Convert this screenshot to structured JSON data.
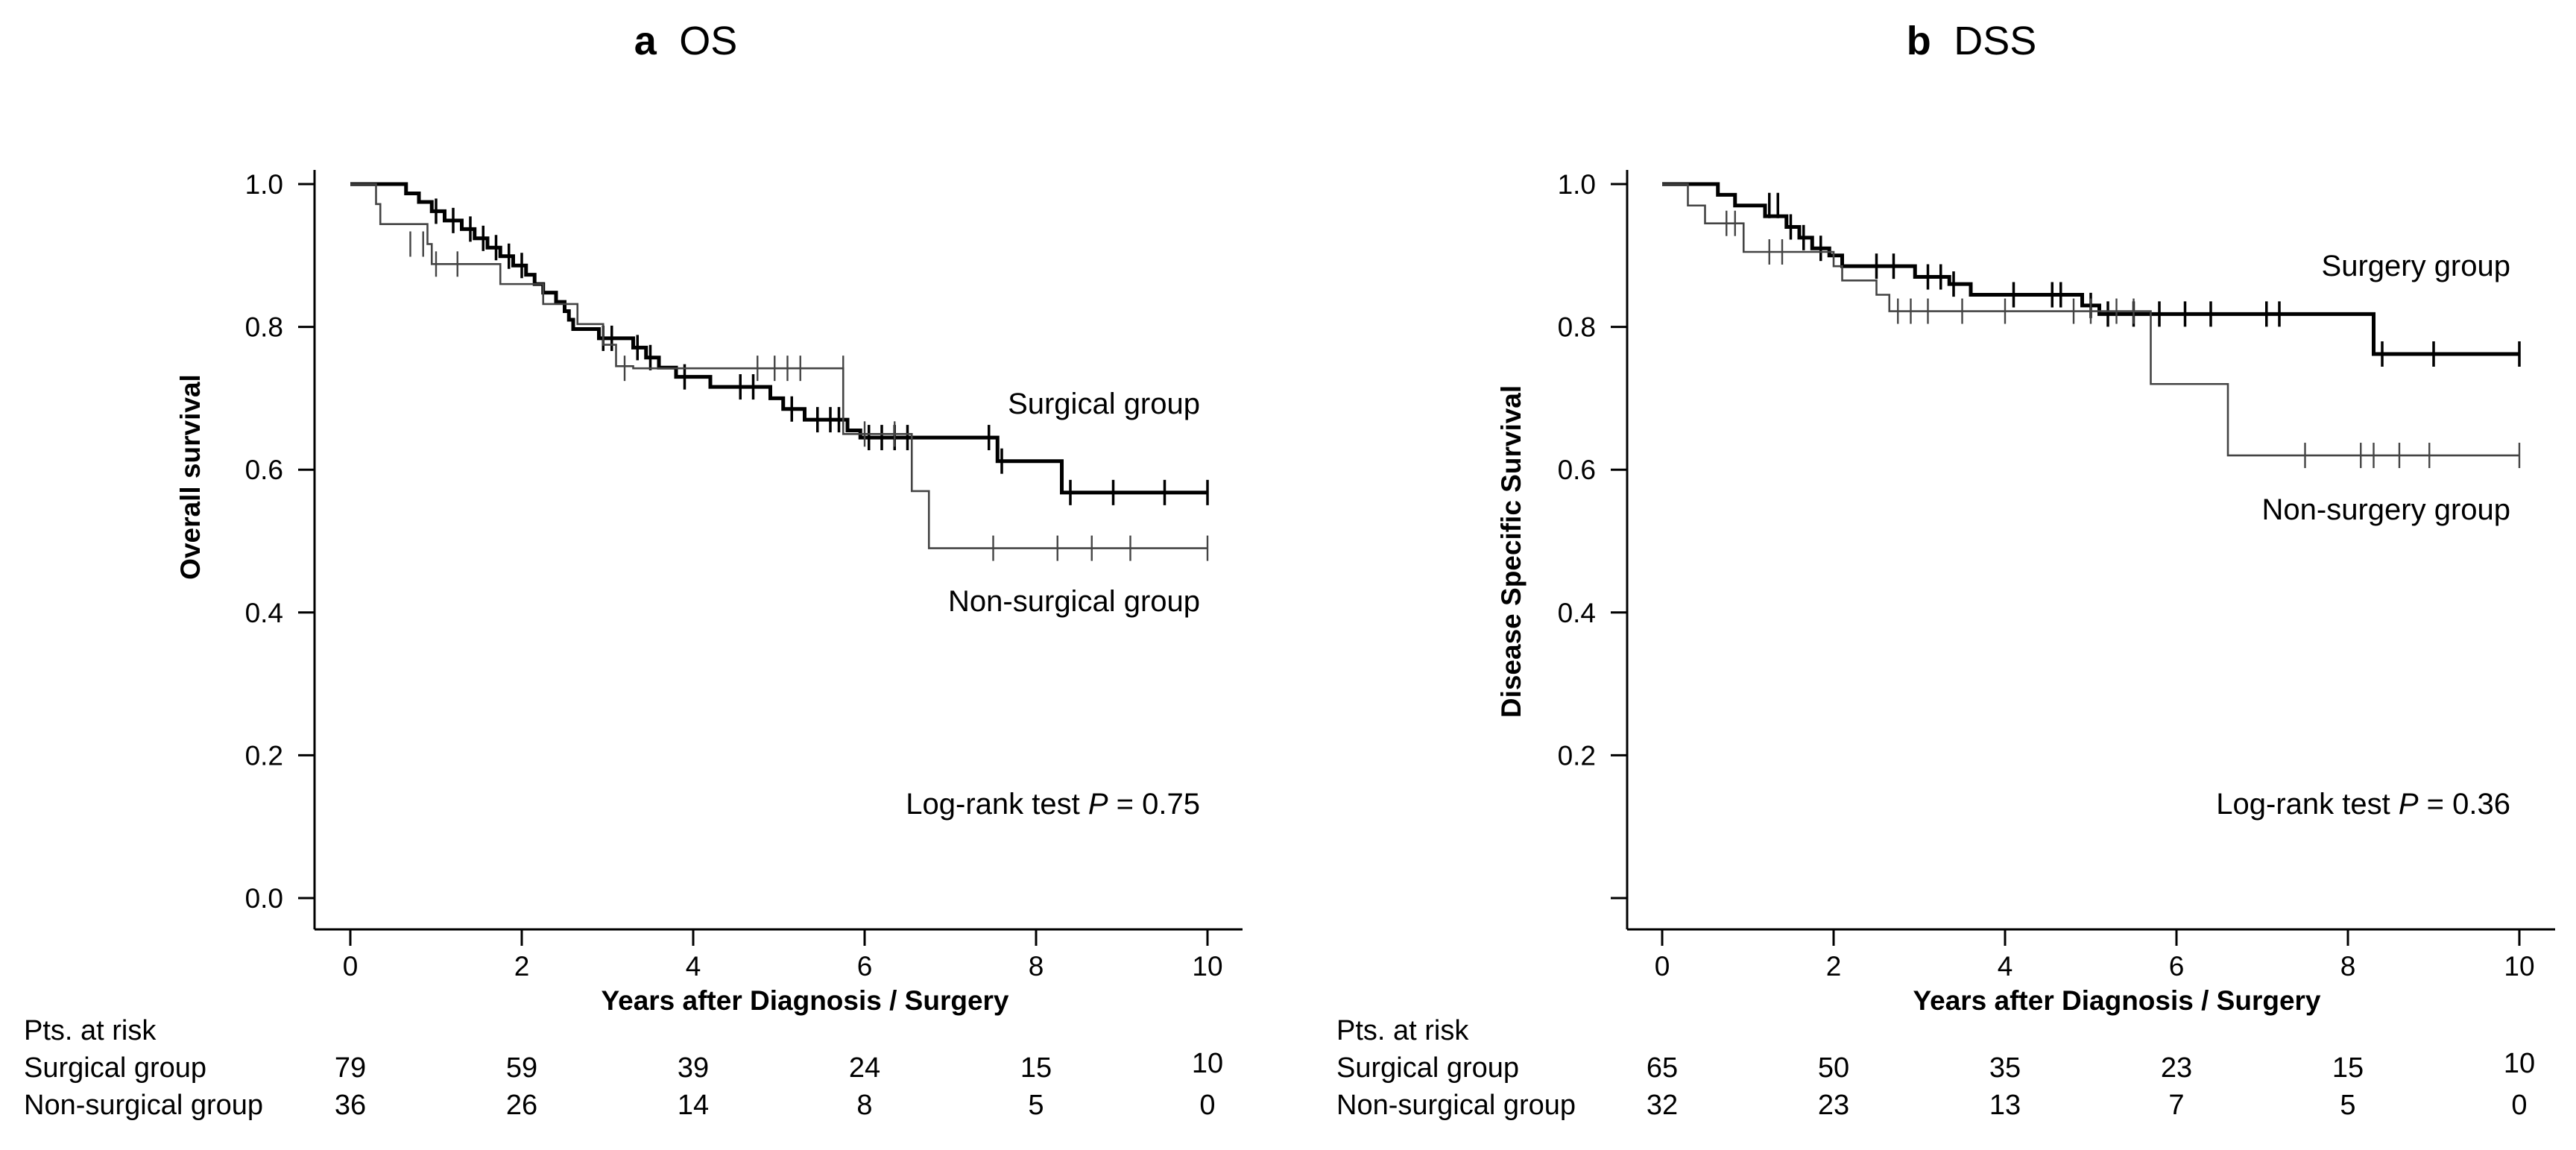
{
  "chart_data": [
    {
      "type": "line",
      "panel_letter": "a",
      "title": "OS",
      "xlabel": "Years after Diagnosis / Surgery",
      "ylabel": "Overall survival",
      "xlim": [
        0,
        10
      ],
      "ylim": [
        0,
        1
      ],
      "x_ticks": [
        0,
        2,
        4,
        6,
        8,
        10
      ],
      "y_ticks": [
        "0.0",
        "0.2",
        "0.4",
        "0.6",
        "0.8",
        "1.0"
      ],
      "grid": false,
      "annotation": {
        "prefix": "Log-rank test ",
        "p_symbol": "P",
        "value": " = 0.75"
      },
      "series": [
        {
          "name": "Surgical group",
          "emphasis": "bold",
          "steps": [
            [
              0,
              1.0
            ],
            [
              0.65,
              0.987
            ],
            [
              0.8,
              0.975
            ],
            [
              0.95,
              0.962
            ],
            [
              1.1,
              0.949
            ],
            [
              1.3,
              0.937
            ],
            [
              1.45,
              0.924
            ],
            [
              1.6,
              0.911
            ],
            [
              1.75,
              0.899
            ],
            [
              1.9,
              0.886
            ],
            [
              2.05,
              0.873
            ],
            [
              2.15,
              0.86
            ],
            [
              2.25,
              0.848
            ],
            [
              2.4,
              0.835
            ],
            [
              2.5,
              0.822
            ],
            [
              2.55,
              0.81
            ],
            [
              2.6,
              0.797
            ],
            [
              2.9,
              0.784
            ],
            [
              3.3,
              0.771
            ],
            [
              3.45,
              0.757
            ],
            [
              3.6,
              0.743
            ],
            [
              3.8,
              0.73
            ],
            [
              4.2,
              0.716
            ],
            [
              4.9,
              0.7
            ],
            [
              5.05,
              0.685
            ],
            [
              5.3,
              0.67
            ],
            [
              5.8,
              0.655
            ],
            [
              5.95,
              0.645
            ],
            [
              7.55,
              0.612
            ],
            [
              8.3,
              0.568
            ],
            [
              10.0,
              0.568
            ]
          ],
          "censors": [
            [
              1.0,
              0.962
            ],
            [
              1.2,
              0.949
            ],
            [
              1.4,
              0.937
            ],
            [
              1.55,
              0.924
            ],
            [
              1.7,
              0.911
            ],
            [
              1.85,
              0.899
            ],
            [
              2.0,
              0.886
            ],
            [
              2.95,
              0.784
            ],
            [
              3.05,
              0.784
            ],
            [
              3.35,
              0.771
            ],
            [
              3.5,
              0.757
            ],
            [
              3.9,
              0.73
            ],
            [
              4.55,
              0.716
            ],
            [
              4.7,
              0.716
            ],
            [
              5.15,
              0.685
            ],
            [
              5.45,
              0.67
            ],
            [
              5.6,
              0.67
            ],
            [
              5.7,
              0.67
            ],
            [
              6.05,
              0.645
            ],
            [
              6.2,
              0.645
            ],
            [
              6.35,
              0.645
            ],
            [
              6.5,
              0.645
            ],
            [
              7.45,
              0.645
            ],
            [
              7.6,
              0.612
            ],
            [
              8.4,
              0.568
            ],
            [
              8.9,
              0.568
            ],
            [
              9.5,
              0.568
            ],
            [
              10.0,
              0.568
            ]
          ]
        },
        {
          "name": "Non-surgical group",
          "emphasis": "thin",
          "steps": [
            [
              0,
              1.0
            ],
            [
              0.3,
              0.972
            ],
            [
              0.35,
              0.944
            ],
            [
              0.9,
              0.916
            ],
            [
              0.95,
              0.888
            ],
            [
              1.75,
              0.86
            ],
            [
              2.25,
              0.832
            ],
            [
              2.65,
              0.804
            ],
            [
              2.95,
              0.775
            ],
            [
              3.1,
              0.745
            ],
            [
              3.3,
              0.742
            ],
            [
              5.75,
              0.65
            ],
            [
              6.55,
              0.57
            ],
            [
              6.75,
              0.49
            ],
            [
              10.0,
              0.49
            ]
          ],
          "censors": [
            [
              0.7,
              0.916
            ],
            [
              0.85,
              0.916
            ],
            [
              1.0,
              0.888
            ],
            [
              1.25,
              0.888
            ],
            [
              3.2,
              0.742
            ],
            [
              4.75,
              0.742
            ],
            [
              4.95,
              0.742
            ],
            [
              5.1,
              0.742
            ],
            [
              5.25,
              0.742
            ],
            [
              5.75,
              0.742
            ],
            [
              6.0,
              0.65
            ],
            [
              6.35,
              0.65
            ],
            [
              7.5,
              0.49
            ],
            [
              8.25,
              0.49
            ],
            [
              8.65,
              0.49
            ],
            [
              9.1,
              0.49
            ],
            [
              10.0,
              0.49
            ]
          ]
        }
      ],
      "labels": {
        "upper": "Surgical group",
        "lower": "Non-surgical group"
      },
      "risk_table": {
        "header": "Pts. at risk",
        "rows": [
          {
            "label": "Surgical group",
            "values": [
              "79",
              "59",
              "39",
              "24",
              "15",
              "10"
            ]
          },
          {
            "label": "Non-surgical group",
            "values": [
              "36",
              "26",
              "14",
              "8",
              "5",
              "0"
            ]
          }
        ]
      }
    },
    {
      "type": "line",
      "panel_letter": "b",
      "title": "DSS",
      "xlabel": "Years after Diagnosis / Surgery",
      "ylabel": "Disease Specific Survival",
      "xlim": [
        0,
        10
      ],
      "ylim": [
        0,
        1
      ],
      "x_ticks": [
        0,
        2,
        4,
        6,
        8,
        10
      ],
      "y_ticks": [
        "",
        "0.2",
        "0.4",
        "0.6",
        "0.8",
        "1.0"
      ],
      "grid": false,
      "annotation": {
        "prefix": "Log-rank test ",
        "p_symbol": "P",
        "value": " = 0.36"
      },
      "series": [
        {
          "name": "Surgery group",
          "emphasis": "bold",
          "steps": [
            [
              0,
              1.0
            ],
            [
              0.65,
              0.985
            ],
            [
              0.85,
              0.97
            ],
            [
              1.2,
              0.955
            ],
            [
              1.45,
              0.94
            ],
            [
              1.6,
              0.925
            ],
            [
              1.75,
              0.91
            ],
            [
              1.95,
              0.9
            ],
            [
              2.1,
              0.885
            ],
            [
              2.95,
              0.87
            ],
            [
              3.35,
              0.86
            ],
            [
              3.6,
              0.845
            ],
            [
              4.9,
              0.83
            ],
            [
              5.1,
              0.818
            ],
            [
              8.3,
              0.762
            ],
            [
              10.0,
              0.762
            ]
          ],
          "censors": [
            [
              1.25,
              0.97
            ],
            [
              1.35,
              0.97
            ],
            [
              1.5,
              0.94
            ],
            [
              1.65,
              0.925
            ],
            [
              1.85,
              0.91
            ],
            [
              2.5,
              0.885
            ],
            [
              2.7,
              0.885
            ],
            [
              3.1,
              0.87
            ],
            [
              3.25,
              0.87
            ],
            [
              3.4,
              0.86
            ],
            [
              4.1,
              0.845
            ],
            [
              4.55,
              0.845
            ],
            [
              4.65,
              0.845
            ],
            [
              5.0,
              0.83
            ],
            [
              5.2,
              0.818
            ],
            [
              5.5,
              0.818
            ],
            [
              5.8,
              0.818
            ],
            [
              6.1,
              0.818
            ],
            [
              6.4,
              0.818
            ],
            [
              7.05,
              0.818
            ],
            [
              7.2,
              0.818
            ],
            [
              8.4,
              0.762
            ],
            [
              9.0,
              0.762
            ],
            [
              10.0,
              0.762
            ]
          ]
        },
        {
          "name": "Non-surgery group",
          "emphasis": "thin",
          "steps": [
            [
              0,
              1.0
            ],
            [
              0.3,
              0.97
            ],
            [
              0.5,
              0.945
            ],
            [
              0.95,
              0.905
            ],
            [
              2.0,
              0.885
            ],
            [
              2.1,
              0.865
            ],
            [
              2.5,
              0.845
            ],
            [
              2.65,
              0.822
            ],
            [
              5.7,
              0.72
            ],
            [
              6.6,
              0.62
            ],
            [
              10.0,
              0.62
            ]
          ],
          "censors": [
            [
              0.75,
              0.945
            ],
            [
              0.85,
              0.945
            ],
            [
              1.25,
              0.905
            ],
            [
              1.4,
              0.905
            ],
            [
              2.75,
              0.822
            ],
            [
              2.9,
              0.822
            ],
            [
              3.1,
              0.822
            ],
            [
              3.5,
              0.822
            ],
            [
              4.0,
              0.822
            ],
            [
              4.8,
              0.822
            ],
            [
              5.0,
              0.822
            ],
            [
              5.3,
              0.822
            ],
            [
              5.5,
              0.822
            ],
            [
              7.5,
              0.62
            ],
            [
              8.15,
              0.62
            ],
            [
              8.3,
              0.62
            ],
            [
              8.6,
              0.62
            ],
            [
              8.95,
              0.62
            ],
            [
              10.0,
              0.62
            ]
          ]
        }
      ],
      "labels": {
        "upper": "Surgery group",
        "lower": "Non-surgery group"
      },
      "risk_table": {
        "header": "Pts. at risk",
        "rows": [
          {
            "label": "Surgical group",
            "values": [
              "65",
              "50",
              "35",
              "23",
              "15",
              "10"
            ]
          },
          {
            "label": "Non-surgical group",
            "values": [
              "32",
              "23",
              "13",
              "7",
              "5",
              "0"
            ]
          }
        ]
      }
    }
  ]
}
